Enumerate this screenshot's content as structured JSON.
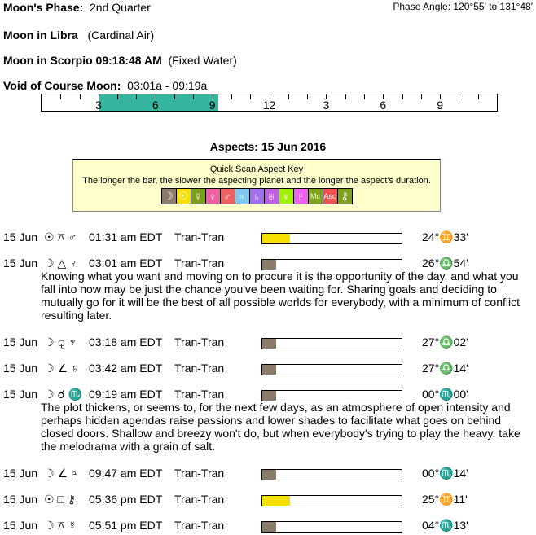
{
  "phase": {
    "label": "Moon's Phase:",
    "value": "2nd Quarter",
    "angle": "Phase Angle:  120°55' to 131°48'"
  },
  "moon_sign": {
    "label": "Moon in Libra",
    "note": "(Cardinal Air)"
  },
  "moon_ingress": {
    "label": "Moon in Scorpio 09:18:48 AM",
    "note": "(Fixed Water)"
  },
  "void": {
    "label": "Void of Course Moon:",
    "value": "03:01a -  09:19a",
    "start_hour": 3.017,
    "end_hour": 9.317,
    "color": "#35b49e",
    "ticks": [
      "3",
      "6",
      "9",
      "12",
      "3",
      "6",
      "9"
    ]
  },
  "aspects_title": "Aspects: 15 Jun 2016",
  "key": {
    "title": "Quick Scan Aspect Key",
    "subtitle": "The longer the bar, the slower the aspecting planet and the longer the aspect's duration.",
    "glyphs": [
      {
        "g": "☽",
        "c": "#8b7b6b"
      },
      {
        "g": "☉",
        "c": "#f5e000"
      },
      {
        "g": "☿",
        "c": "#7a9e1a"
      },
      {
        "g": "♀",
        "c": "#f060a0"
      },
      {
        "g": "♂",
        "c": "#f06060"
      },
      {
        "g": "♃",
        "c": "#80c8f0"
      },
      {
        "g": "♄",
        "c": "#a070f0"
      },
      {
        "g": "♅",
        "c": "#c060e0"
      },
      {
        "g": "♆",
        "c": "#a0f000"
      },
      {
        "g": "♇",
        "c": "#f060f0"
      },
      {
        "g": "Mc",
        "c": "#80a020"
      },
      {
        "g": "Asc",
        "c": "#f05050"
      },
      {
        "g": "⚷",
        "c": "#80a020"
      }
    ]
  },
  "rows": [
    {
      "date": "15 Jun",
      "aspect": "☉ ⚻ ♂",
      "time": "01:31 am EDT",
      "type": "Tran-Tran",
      "pos": "24°♊33'",
      "fill": 0.2,
      "color": "#f5e000"
    },
    {
      "date": "15 Jun",
      "aspect": "☽ △ ♀",
      "time": "03:01 am EDT",
      "type": "Tran-Tran",
      "pos": "26°♎54'",
      "fill": 0.1,
      "color": "#8b7b6b",
      "desc": "Knowing what you want and moving on to procure it is the opportunity of the day, and what you fall into now may be just the chance you've been waiting for. Sharing goals and deciding to mutually go for it will be the best of all possible worlds for everybody, with a minimum of conflict resulting later."
    },
    {
      "date": "15 Jun",
      "aspect": "☽ ⚼ ♆",
      "time": "03:18 am EDT",
      "type": "Tran-Tran",
      "pos": "27°♎02'",
      "fill": 0.1,
      "color": "#8b7b6b"
    },
    {
      "date": "15 Jun",
      "aspect": "☽ ∠ ♄",
      "time": "03:42 am EDT",
      "type": "Tran-Tran",
      "pos": "27°♎14'",
      "fill": 0.1,
      "color": "#8b7b6b"
    },
    {
      "date": "15 Jun",
      "aspect": "☽ ☌ ♏",
      "time": "09:19 am EDT",
      "type": "Tran-Tran",
      "pos": "00°♏00'",
      "fill": 0.1,
      "color": "#8b7b6b",
      "desc": "The plot thickens, or seems to, for the next few days, as an atmosphere of open intensity and perhaps hidden agendas raise passions and lower shades to facilitate what goes on behind closed doors. Shallow and breezy won't do, but when everybody's trying to play the heavy, take the melodrama with a grain of salt."
    },
    {
      "date": "15 Jun",
      "aspect": "☽ ∠ ♃",
      "time": "09:47 am EDT",
      "type": "Tran-Tran",
      "pos": "00°♏14'",
      "fill": 0.1,
      "color": "#8b7b6b"
    },
    {
      "date": "15 Jun",
      "aspect": "☉ □ ⚷",
      "time": "05:36 pm EDT",
      "type": "Tran-Tran",
      "pos": "25°♊11'",
      "fill": 0.2,
      "color": "#f5e000"
    },
    {
      "date": "15 Jun",
      "aspect": "☽ ⚻ ☿",
      "time": "05:51 pm EDT",
      "type": "Tran-Tran",
      "pos": "04°♏13'",
      "fill": 0.1,
      "color": "#8b7b6b"
    }
  ]
}
